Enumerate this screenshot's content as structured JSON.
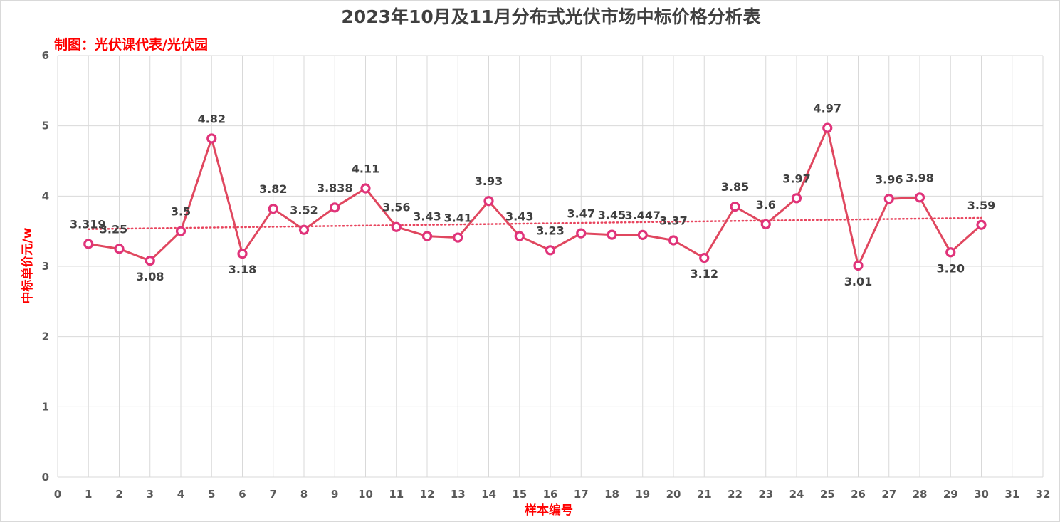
{
  "chart_data": {
    "type": "line",
    "title": "2023年10月及11月分布式光伏市场中标价格分析表",
    "credit": "制图：光伏课代表/光伏园",
    "xlabel": "样本编号",
    "ylabel": "中标单价元/w",
    "xlim": [
      0,
      32
    ],
    "ylim": [
      0,
      6
    ],
    "x_ticks": [
      0,
      1,
      2,
      3,
      4,
      5,
      6,
      7,
      8,
      9,
      10,
      11,
      12,
      13,
      14,
      15,
      16,
      17,
      18,
      19,
      20,
      21,
      22,
      23,
      24,
      25,
      26,
      27,
      28,
      29,
      30,
      31,
      32
    ],
    "y_ticks": [
      0,
      1,
      2,
      3,
      4,
      5,
      6
    ],
    "grid": "vertical and horizontal major gridlines",
    "legend": "none",
    "series": [
      {
        "x": [
          1,
          2,
          3,
          4,
          5,
          6,
          7,
          8,
          9,
          10,
          11,
          12,
          13,
          14,
          15,
          16,
          17,
          18,
          19,
          20,
          21,
          22,
          23,
          24,
          25,
          26,
          27,
          28,
          29,
          30
        ],
        "values": [
          3.319,
          3.25,
          3.08,
          3.5,
          4.82,
          3.18,
          3.82,
          3.52,
          3.838,
          4.11,
          3.56,
          3.43,
          3.41,
          3.93,
          3.43,
          3.23,
          3.47,
          3.45,
          3.447,
          3.37,
          3.12,
          3.85,
          3.6,
          3.97,
          4.97,
          3.01,
          3.96,
          3.98,
          3.2,
          3.59
        ],
        "labels": [
          "3.319",
          "3.25",
          "3.08",
          "3.5",
          "4.82",
          "3.18",
          "3.82",
          "3.52",
          "3.838",
          "4.11",
          "3.56",
          "3.43",
          "3.41",
          "3.93",
          "3.43",
          "3.23",
          "3.47",
          "3.45",
          "3.447",
          "3.37",
          "3.12",
          "3.85",
          "3.6",
          "3.97",
          "4.97",
          "3.01",
          "3.96",
          "3.98",
          "3.20",
          "3.59"
        ]
      }
    ],
    "trendline": {
      "type": "linear",
      "style": "dotted",
      "x_range": [
        1,
        30
      ],
      "y_start": 3.53,
      "y_end": 3.69
    },
    "colors": {
      "line": "#e0475f",
      "marker_edge": "#e0337a",
      "trendline": "#e8455e",
      "grid": "#d9d9d9",
      "accent_text": "#ff0000"
    }
  }
}
